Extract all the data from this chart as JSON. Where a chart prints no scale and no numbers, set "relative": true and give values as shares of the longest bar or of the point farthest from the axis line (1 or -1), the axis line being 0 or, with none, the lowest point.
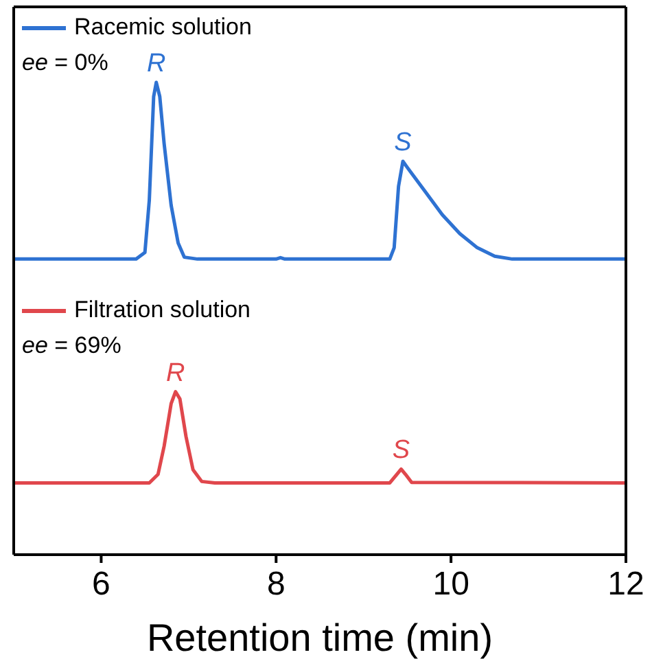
{
  "chart_data": {
    "type": "line",
    "relative": true,
    "xlabel": "Retention time (min)",
    "xlim": [
      5,
      12
    ],
    "xticks": [
      6,
      8,
      10,
      12
    ],
    "legend": "top left",
    "marker": "none",
    "line_style": "solid",
    "series": [
      {
        "name": "Racemic solution",
        "color": "#2e72d2",
        "x": [
          5,
          6.4,
          6.5,
          6.55,
          6.6,
          6.63,
          6.67,
          6.72,
          6.8,
          6.88,
          6.95,
          7.1,
          8.0,
          8.05,
          8.1,
          9.3,
          9.35,
          9.4,
          9.45,
          9.5,
          9.7,
          9.9,
          10.1,
          10.3,
          10.5,
          10.7,
          12
        ],
        "values": [
          0.626,
          0.626,
          0.64,
          0.75,
          0.97,
          1.0,
          0.97,
          0.87,
          0.74,
          0.66,
          0.63,
          0.626,
          0.626,
          0.629,
          0.626,
          0.626,
          0.65,
          0.78,
          0.833,
          0.82,
          0.77,
          0.72,
          0.68,
          0.65,
          0.632,
          0.626,
          0.626
        ]
      },
      {
        "name": "Filtration solution",
        "color": "#e0474c",
        "x": [
          5,
          6.55,
          6.65,
          6.72,
          6.8,
          6.85,
          6.9,
          6.97,
          7.05,
          7.15,
          7.3,
          9.3,
          9.38,
          9.43,
          9.48,
          9.55,
          12
        ],
        "values": [
          0.152,
          0.152,
          0.17,
          0.23,
          0.32,
          0.345,
          0.33,
          0.25,
          0.18,
          0.155,
          0.152,
          0.152,
          0.17,
          0.181,
          0.17,
          0.153,
          0.152
        ]
      }
    ],
    "annotations": [
      "ee = 0%",
      "ee = 69%",
      {
        "text": "R",
        "x": 6.63,
        "y": 1.0
      },
      {
        "text": "S",
        "x": 9.45,
        "y": 0.833
      },
      {
        "text": "R",
        "x": 6.85,
        "y": 0.345
      },
      {
        "text": "S",
        "x": 9.43,
        "y": 0.181
      }
    ]
  }
}
